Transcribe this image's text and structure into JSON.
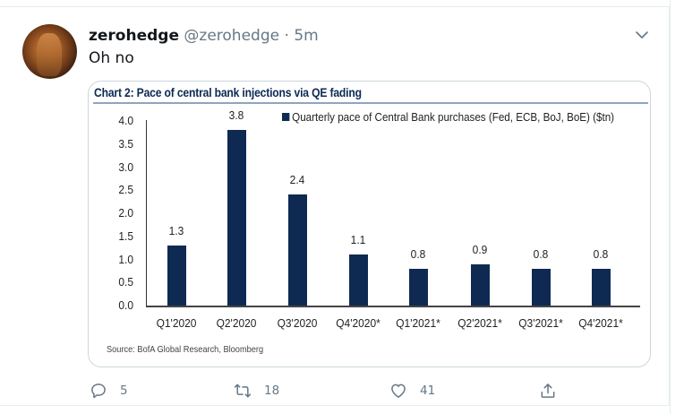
{
  "tweet": {
    "author_name": "zerohedge",
    "author_handle": "@zerohedge",
    "separator": "·",
    "time": "5m",
    "text": "Oh no",
    "avatar_icon": "avatar-image",
    "menu_icon": "chevron-down-icon"
  },
  "media": {
    "chart_title": "Chart 2: Pace of central bank injections via QE fading",
    "legend": "Quarterly pace of Central Bank purchases (Fed, ECB, BoJ, BoE) ($tn)",
    "source": "Source: BofA Global Research, Bloomberg"
  },
  "chart_data": {
    "type": "bar",
    "title": "Chart 2: Pace of central bank injections via QE fading",
    "xlabel": "",
    "ylabel": "",
    "categories": [
      "Q1'2020",
      "Q2'2020",
      "Q3'2020",
      "Q4'2020*",
      "Q1'2021*",
      "Q2'2021*",
      "Q3'2021*",
      "Q4'2021*"
    ],
    "series": [
      {
        "name": "Quarterly pace of Central Bank purchases (Fed, ECB, BoJ, BoE) ($tn)",
        "values": [
          1.3,
          3.8,
          2.4,
          1.1,
          0.8,
          0.9,
          0.8,
          0.8
        ],
        "labels": [
          "1.3",
          "3.8",
          "2.4",
          "1.1",
          "0.8",
          "0.9",
          "0.8",
          "0.8"
        ],
        "color": "#0f2a52"
      }
    ],
    "yticks": [
      "4.0",
      "3.5",
      "3.0",
      "2.5",
      "2.0",
      "1.5",
      "1.0",
      "0.5",
      "0.0"
    ],
    "ylim": [
      0,
      4.0
    ],
    "grid": false,
    "legend_position": "top-right",
    "source": "Source: BofA Global Research, Bloomberg"
  },
  "actions": {
    "reply": {
      "icon": "reply-icon",
      "count": "5"
    },
    "retweet": {
      "icon": "retweet-icon",
      "count": "18"
    },
    "like": {
      "icon": "heart-icon",
      "count": "41"
    },
    "share": {
      "icon": "share-icon"
    }
  }
}
